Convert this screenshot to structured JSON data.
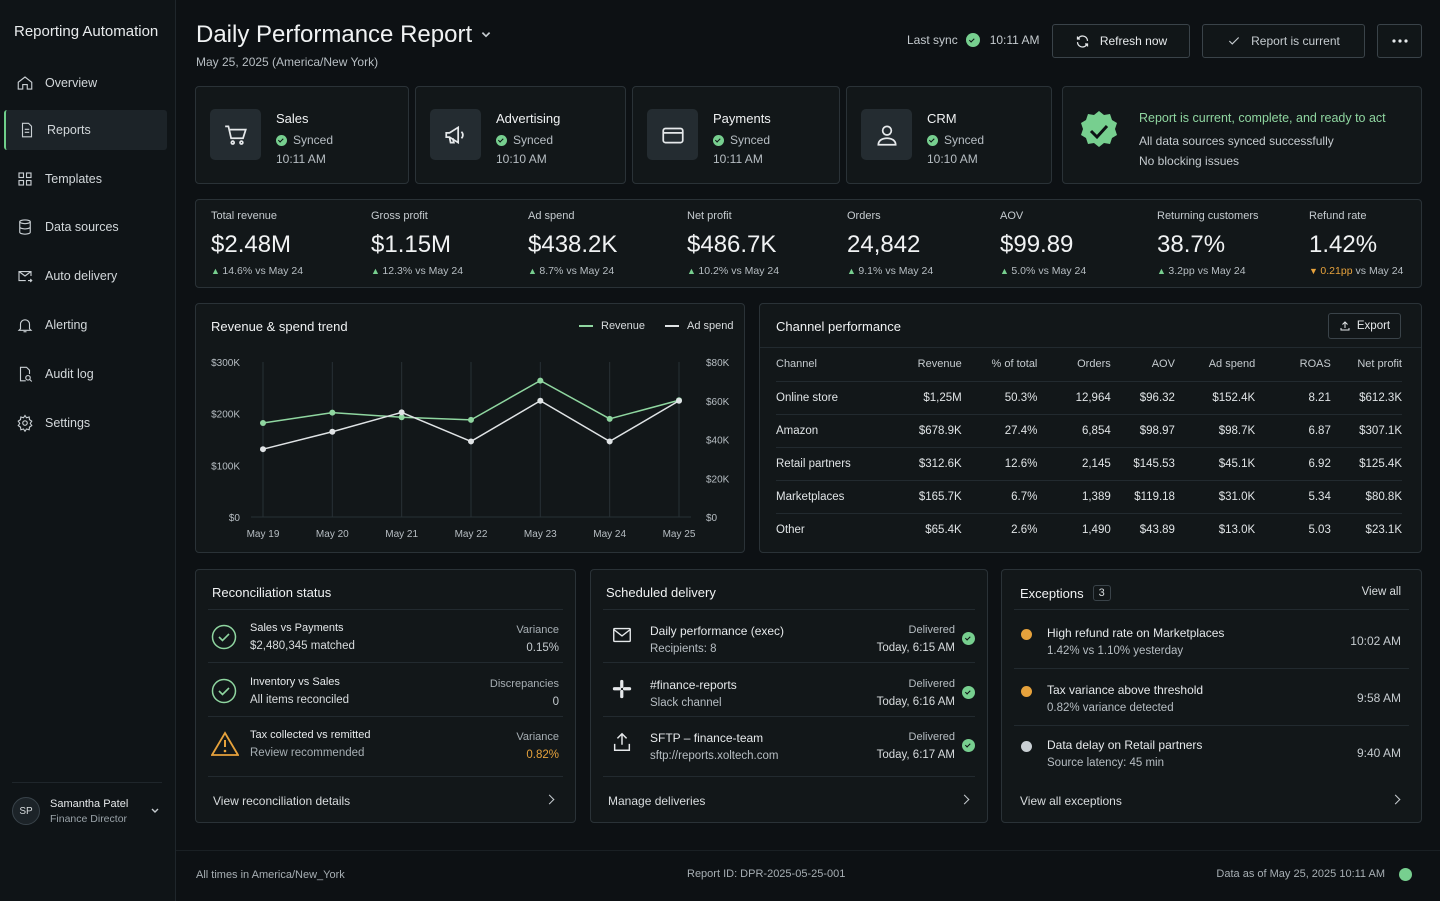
{
  "app": {
    "title": "Reporting Automation"
  },
  "nav": [
    {
      "label": "Overview",
      "icon": "home-icon"
    },
    {
      "label": "Reports",
      "icon": "document-icon",
      "active": true
    },
    {
      "label": "Templates",
      "icon": "grid-icon"
    },
    {
      "label": "Data sources",
      "icon": "database-icon"
    },
    {
      "label": "Auto delivery",
      "icon": "mail-send-icon"
    },
    {
      "label": "Alerting",
      "icon": "bell-icon"
    },
    {
      "label": "Audit log",
      "icon": "file-search-icon"
    },
    {
      "label": "Settings",
      "icon": "gear-icon"
    }
  ],
  "user": {
    "initials": "SP",
    "name": "Samantha Patel",
    "role": "Finance Director"
  },
  "header": {
    "title": "Daily Performance Report",
    "subtitle": "May 25, 2025 (America/New York)",
    "last_sync_label": "Last sync",
    "last_sync_time": "10:11 AM",
    "refresh_label": "Refresh now",
    "current_label": "Report is current"
  },
  "sources": [
    {
      "name": "Sales",
      "status": "Synced",
      "time": "10:11 AM",
      "icon": "cart-icon"
    },
    {
      "name": "Advertising",
      "status": "Synced",
      "time": "10:10 AM",
      "icon": "megaphone-icon"
    },
    {
      "name": "Payments",
      "status": "Synced",
      "time": "10:11 AM",
      "icon": "credit-card-icon"
    },
    {
      "name": "CRM",
      "status": "Synced",
      "time": "10:10 AM",
      "icon": "user-icon"
    }
  ],
  "status_banner": {
    "headline": "Report is current, complete, and ready to act",
    "line1": "All data sources synced successfully",
    "line2": "No blocking issues"
  },
  "kpis": [
    {
      "label": "Total revenue",
      "value": "$2.48M",
      "delta": "14.6%",
      "vs": "vs May 24",
      "dir": "up"
    },
    {
      "label": "Gross profit",
      "value": "$1.15M",
      "delta": "12.3%",
      "vs": "vs May 24",
      "dir": "up"
    },
    {
      "label": "Ad spend",
      "value": "$438.2K",
      "delta": "8.7%",
      "vs": "vs May 24",
      "dir": "up"
    },
    {
      "label": "Net profit",
      "value": "$486.7K",
      "delta": "10.2%",
      "vs": "vs May 24",
      "dir": "up"
    },
    {
      "label": "Orders",
      "value": "24,842",
      "delta": "9.1%",
      "vs": "vs May 24",
      "dir": "up"
    },
    {
      "label": "AOV",
      "value": "$99.89",
      "delta": "5.0%",
      "vs": "vs May 24",
      "dir": "up"
    },
    {
      "label": "Returning customers",
      "value": "38.7%",
      "delta": "3.2pp",
      "vs": "vs May 24",
      "dir": "up"
    },
    {
      "label": "Refund rate",
      "value": "1.42%",
      "delta": "0.21pp",
      "vs": "vs May 24",
      "dir": "down"
    }
  ],
  "chart_data": {
    "type": "line",
    "title": "Revenue & spend trend",
    "x": [
      "May 19",
      "May 20",
      "May 21",
      "May 22",
      "May 23",
      "May 24",
      "May 25"
    ],
    "series": [
      {
        "name": "Revenue",
        "axis": "left",
        "color": "#8fd6a0",
        "values": [
          182000,
          202000,
          193000,
          188000,
          264000,
          190000,
          226000
        ]
      },
      {
        "name": "Ad spend",
        "axis": "right",
        "color": "#dfe3e5",
        "values": [
          35000,
          44000,
          54000,
          39000,
          60000,
          39000,
          60000
        ]
      }
    ],
    "left_ticks": [
      "$300K",
      "$200K",
      "$100K",
      "$0"
    ],
    "right_ticks": [
      "$80K",
      "$60K",
      "$40K",
      "$20K",
      "$0"
    ],
    "ylim_left": [
      0,
      300000
    ],
    "ylim_right": [
      0,
      80000
    ],
    "grid": "vertical",
    "legend": "top-right"
  },
  "channel": {
    "title": "Channel performance",
    "export_label": "Export",
    "columns": [
      "Channel",
      "Revenue",
      "% of total",
      "Orders",
      "AOV",
      "Ad spend",
      "ROAS",
      "Net profit"
    ],
    "rows": [
      [
        "Online store",
        "$1,25M",
        "50.3%",
        "12,964",
        "$96.32",
        "$152.4K",
        "8.21",
        "$612.3K"
      ],
      [
        "Amazon",
        "$678.9K",
        "27.4%",
        "6,854",
        "$98.97",
        "$98.7K",
        "6.87",
        "$307.1K"
      ],
      [
        "Retail partners",
        "$312.6K",
        "12.6%",
        "2,145",
        "$145.53",
        "$45.1K",
        "6.92",
        "$125.4K"
      ],
      [
        "Marketplaces",
        "$165.7K",
        "6.7%",
        "1,389",
        "$119.18",
        "$31.0K",
        "5.34",
        "$80.8K"
      ],
      [
        "Other",
        "$65.4K",
        "2.6%",
        "1,490",
        "$43.89",
        "$13.0K",
        "5.03",
        "$23.1K"
      ]
    ]
  },
  "reconciliation": {
    "title": "Reconciliation status",
    "items": [
      {
        "name": "Sales vs Payments",
        "detail": "$2,480,345 matched",
        "metric": "Variance",
        "value": "0.15%",
        "icon": "check-circle-icon"
      },
      {
        "name": "Inventory vs Sales",
        "detail": "All items reconciled",
        "metric": "Discrepancies",
        "value": "0",
        "icon": "check-circle-icon"
      },
      {
        "name": "Tax collected vs remitted",
        "detail": "Review recommended",
        "metric": "Variance",
        "value": "0.82%",
        "icon": "warning-icon"
      }
    ],
    "link": "View reconciliation details"
  },
  "delivery": {
    "title": "Scheduled delivery",
    "items": [
      {
        "name": "Daily performance (exec)",
        "detail": "Recipients: 8",
        "status": "Delivered",
        "time": "Today, 6:15 AM",
        "icon": "mail-icon"
      },
      {
        "name": "#finance-reports",
        "detail": "Slack channel",
        "status": "Delivered",
        "time": "Today, 6:16 AM",
        "icon": "slack-icon"
      },
      {
        "name": "SFTP – finance-team",
        "detail": "sftp://reports.xoltech.com",
        "status": "Delivered",
        "time": "Today, 6:17 AM",
        "icon": "upload-icon"
      }
    ],
    "link": "Manage deliveries"
  },
  "exceptions": {
    "title": "Exceptions",
    "count": "3",
    "view_all": "View all",
    "items": [
      {
        "name": "High refund rate on Marketplaces",
        "detail": "1.42% vs 1.10% yesterday",
        "time": "10:02 AM",
        "color": "#e6a23c"
      },
      {
        "name": "Tax variance above threshold",
        "detail": "0.82% variance detected",
        "time": "9:58 AM",
        "color": "#e6a23c"
      },
      {
        "name": "Data delay on Retail partners",
        "detail": "Source latency: 45 min",
        "time": "9:40 AM",
        "color": "#c9cfd3"
      }
    ],
    "link": "View all exceptions"
  },
  "footer": {
    "timezone": "All times in America/New_York",
    "report_id": "Report ID: DPR-2025-05-25-001",
    "data_as_of": "Data as of May 25, 2025 10:11 AM"
  }
}
